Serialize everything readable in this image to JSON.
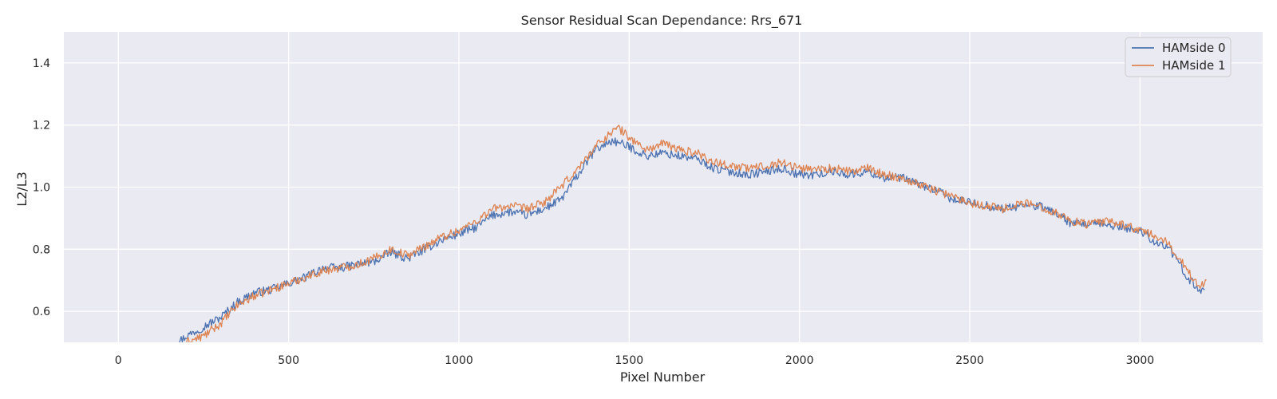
{
  "chart_data": {
    "type": "line",
    "title": "Sensor Residual Scan Dependance: Rrs_671",
    "xlabel": "Pixel Number",
    "ylabel": "L2/L3",
    "xlim": [
      -160,
      3360
    ],
    "ylim": [
      0.5,
      1.5
    ],
    "xticks": [
      0,
      500,
      1000,
      1500,
      2000,
      2500,
      3000
    ],
    "yticks": [
      0.6,
      0.8,
      1.0,
      1.2,
      1.4
    ],
    "xtick_labels": [
      "0",
      "500",
      "1000",
      "1500",
      "2000",
      "2500",
      "3000"
    ],
    "ytick_labels": [
      "0.6",
      "0.8",
      "1.0",
      "1.2",
      "1.4"
    ],
    "grid": true,
    "legend_position": "top-right",
    "background": "#eaeaf2",
    "series": [
      {
        "name": "HAMside 0",
        "color": "#4c72b0",
        "x": [
          160,
          200,
          250,
          300,
          350,
          400,
          450,
          500,
          550,
          600,
          650,
          700,
          750,
          800,
          850,
          900,
          950,
          1000,
          1050,
          1100,
          1150,
          1200,
          1250,
          1300,
          1350,
          1400,
          1450,
          1500,
          1550,
          1600,
          1650,
          1700,
          1750,
          1800,
          1850,
          1900,
          1950,
          2000,
          2050,
          2100,
          2150,
          2200,
          2250,
          2300,
          2350,
          2400,
          2450,
          2500,
          2550,
          2600,
          2650,
          2700,
          2750,
          2800,
          2850,
          2900,
          2950,
          3000,
          3050,
          3080,
          3110,
          3140,
          3170,
          3190
        ],
        "y": [
          0.49,
          0.52,
          0.55,
          0.58,
          0.63,
          0.66,
          0.67,
          0.69,
          0.71,
          0.74,
          0.74,
          0.75,
          0.76,
          0.79,
          0.77,
          0.8,
          0.83,
          0.85,
          0.87,
          0.91,
          0.92,
          0.91,
          0.93,
          0.96,
          1.04,
          1.12,
          1.15,
          1.13,
          1.1,
          1.11,
          1.1,
          1.09,
          1.06,
          1.05,
          1.04,
          1.05,
          1.06,
          1.04,
          1.04,
          1.05,
          1.04,
          1.05,
          1.03,
          1.03,
          1.01,
          0.99,
          0.96,
          0.95,
          0.94,
          0.93,
          0.94,
          0.94,
          0.92,
          0.88,
          0.88,
          0.88,
          0.87,
          0.86,
          0.82,
          0.81,
          0.76,
          0.71,
          0.67,
          0.67
        ]
      },
      {
        "name": "HAMside 1",
        "color": "#dd8452",
        "x": [
          200,
          250,
          300,
          350,
          400,
          450,
          500,
          550,
          600,
          650,
          700,
          750,
          800,
          850,
          900,
          950,
          1000,
          1050,
          1100,
          1150,
          1200,
          1250,
          1300,
          1350,
          1400,
          1450,
          1470,
          1500,
          1550,
          1600,
          1650,
          1700,
          1750,
          1800,
          1850,
          1900,
          1950,
          2000,
          2050,
          2100,
          2150,
          2200,
          2250,
          2300,
          2350,
          2400,
          2450,
          2500,
          2550,
          2600,
          2650,
          2700,
          2750,
          2800,
          2850,
          2900,
          2950,
          3000,
          3050,
          3080,
          3110,
          3140,
          3170,
          3195
        ],
        "y": [
          0.5,
          0.52,
          0.56,
          0.62,
          0.65,
          0.67,
          0.69,
          0.71,
          0.73,
          0.74,
          0.75,
          0.77,
          0.8,
          0.78,
          0.81,
          0.84,
          0.86,
          0.89,
          0.93,
          0.94,
          0.93,
          0.95,
          1.0,
          1.06,
          1.13,
          1.18,
          1.19,
          1.16,
          1.12,
          1.14,
          1.12,
          1.11,
          1.08,
          1.07,
          1.06,
          1.07,
          1.08,
          1.06,
          1.06,
          1.06,
          1.05,
          1.06,
          1.04,
          1.03,
          1.01,
          0.99,
          0.97,
          0.95,
          0.94,
          0.93,
          0.95,
          0.94,
          0.92,
          0.89,
          0.88,
          0.89,
          0.88,
          0.86,
          0.84,
          0.82,
          0.78,
          0.73,
          0.68,
          0.7
        ]
      }
    ]
  }
}
